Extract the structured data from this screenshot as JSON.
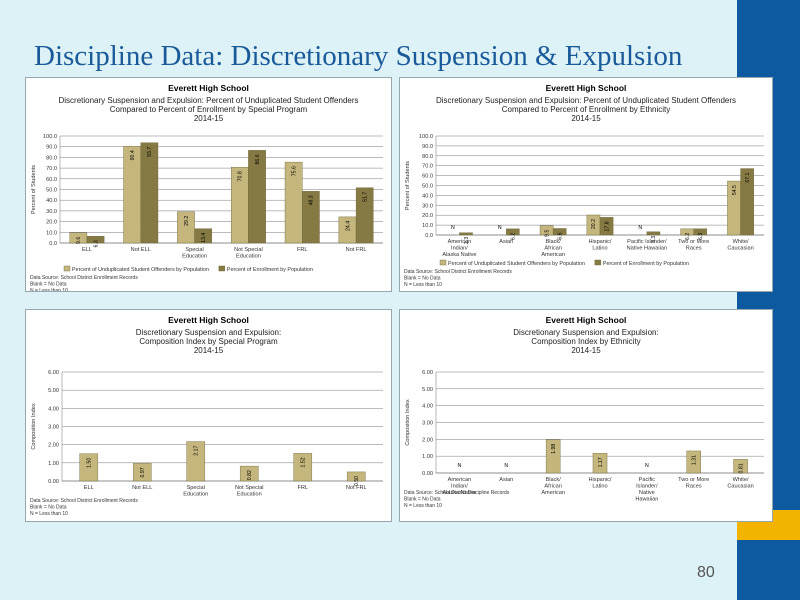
{
  "page": {
    "title": "Discipline Data: Discretionary Suspension & Expulsion",
    "page_number": "80",
    "colors": {
      "background": "#ddf2f7",
      "sidebar": "#0d5aa0",
      "accent": "#f2b400",
      "title": "#1b5a99",
      "bar_light": "#c4b67c",
      "bar_dark": "#857a44"
    }
  },
  "chart_data": [
    {
      "type": "bar",
      "school": "Everett High School",
      "subtitle": [
        "Discretionary Suspension and Expulsion: Percent of Unduplicated Student Offenders",
        "Compared to Percent of Enrollment by Special Program",
        "2014-15"
      ],
      "ylabel": "Percent of Students",
      "ylim": [
        0,
        100
      ],
      "yticks": [
        "0.0",
        "10.0",
        "20.0",
        "30.0",
        "40.0",
        "50.0",
        "60.0",
        "70.0",
        "80.0",
        "90.0",
        "100.0"
      ],
      "categories": [
        [
          "ELL"
        ],
        [
          "Not ELL"
        ],
        [
          "Special",
          "Education"
        ],
        [
          "Not Special",
          "Education"
        ],
        [
          "FRL"
        ],
        [
          "Not FRL"
        ]
      ],
      "series": [
        {
          "name": "Percent of Unduplicated Student Offenders by Population",
          "values": [
            9.6,
            90.4,
            29.2,
            70.8,
            75.6,
            24.4
          ],
          "labels": [
            "9.6",
            "90.4",
            "29.2",
            "70.8",
            "75.6",
            "24.4"
          ]
        },
        {
          "name": "Percent of Enrollment by Population",
          "values": [
            6.3,
            93.7,
            13.4,
            86.6,
            48.3,
            51.7
          ],
          "labels": [
            "6.3",
            "93.7",
            "13.4",
            "86.6",
            "48.3",
            "51.7"
          ]
        }
      ],
      "notes": [
        "Data Source: School District Enrollment Records",
        "Blank = No Data",
        "N = Less than 10"
      ],
      "legend": "bottom",
      "grid": true
    },
    {
      "type": "bar",
      "school": "Everett High School",
      "subtitle": [
        "Discretionary Suspension and Expulsion: Percent of Unduplicated Student Offenders",
        "Compared to Percent of Enrollment by Ethnicity",
        "2014-15"
      ],
      "ylabel": "Percent of Students",
      "ylim": [
        0,
        100
      ],
      "yticks": [
        "0.0",
        "10.0",
        "20.0",
        "30.0",
        "40.0",
        "50.0",
        "60.0",
        "70.0",
        "80.0",
        "90.0",
        "100.0"
      ],
      "categories": [
        [
          "American",
          "Indian/",
          "Alaska Native"
        ],
        [
          "Asian"
        ],
        [
          "Black/",
          "African",
          "American"
        ],
        [
          "Hispanic/",
          "Latino"
        ],
        [
          "Pacific Islander/",
          "Native Hawaiian"
        ],
        [
          "Two or More",
          "Races"
        ],
        [
          "White/",
          "Caucasian"
        ]
      ],
      "series": [
        {
          "name": "Percent of Unduplicated Student Offenders by Population",
          "values": [
            null,
            null,
            9.5,
            20.2,
            null,
            6.2,
            54.5
          ],
          "labels": [
            "N",
            "N",
            "9.5",
            "20.2",
            "N",
            "6.2",
            "54.5"
          ]
        },
        {
          "name": "Percent of Enrollment by Population",
          "values": [
            2.3,
            6.2,
            6.6,
            17.8,
            3.3,
            6.3,
            67.1
          ],
          "labels": [
            "2.3",
            "6.2",
            "6.6",
            "17.8",
            "3.3",
            "6.3",
            "67.1"
          ]
        }
      ],
      "notes": [
        "Data Source: School District Enrollment Records",
        "Blank = No Data",
        "N = Less than 10"
      ],
      "legend": "bottom",
      "grid": true
    },
    {
      "type": "bar",
      "school": "Everett High School",
      "subtitle": [
        "Discretionary Suspension and Expulsion:",
        "Composition Index by Special Program",
        "2014-15"
      ],
      "ylabel": "Composition Index",
      "ylim": [
        0,
        6
      ],
      "yticks": [
        "0.00",
        "1.00",
        "2.00",
        "3.00",
        "4.00",
        "5.00",
        "6.00"
      ],
      "categories": [
        [
          "ELL"
        ],
        [
          "Not ELL"
        ],
        [
          "Special",
          "Education"
        ],
        [
          "Not Special",
          "Education"
        ],
        [
          "FRL"
        ],
        [
          "Not FRL"
        ]
      ],
      "series": [
        {
          "name": "Composition Index",
          "values": [
            1.5,
            0.97,
            2.17,
            0.82,
            1.52,
            0.5
          ],
          "labels": [
            "1.50",
            "0.97",
            "2.17",
            "0.82",
            "1.52",
            "0.50"
          ]
        }
      ],
      "notes": [
        "Data Source: School District Enrollment Records",
        "Blank = No Data",
        "N = Less than 10"
      ],
      "grid": true
    },
    {
      "type": "bar",
      "school": "Everett High School",
      "subtitle": [
        "Discretionary Suspension and Expulsion:",
        "Composition Index by Ethnicity",
        "2014-15"
      ],
      "ylabel": "Composition Index",
      "ylim": [
        0,
        6
      ],
      "yticks": [
        "0.00",
        "1.00",
        "2.00",
        "3.00",
        "4.00",
        "5.00",
        "6.00"
      ],
      "categories": [
        [
          "American",
          "Indian/",
          "Alaska Native"
        ],
        [
          "Asian"
        ],
        [
          "Black/",
          "African",
          "American"
        ],
        [
          "Hispanic/",
          "Latino"
        ],
        [
          "Pacific",
          "Islander/",
          "Native",
          "Hawaiian"
        ],
        [
          "Two or More",
          "Races"
        ],
        [
          "White/",
          "Caucasian"
        ]
      ],
      "series": [
        {
          "name": "Composition Index",
          "values": [
            null,
            null,
            1.98,
            1.17,
            null,
            1.31,
            0.81
          ],
          "labels": [
            "N",
            "N",
            "1.98",
            "1.17",
            "N",
            "1.31",
            "0.81"
          ]
        }
      ],
      "notes": [
        "Data Source: School District Discipline Records",
        "Blank = No Data",
        "N = Less than 10"
      ],
      "grid": true
    }
  ]
}
